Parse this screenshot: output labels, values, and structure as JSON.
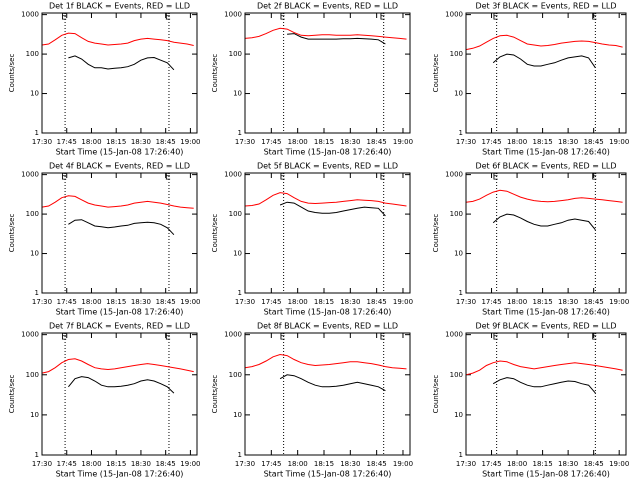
{
  "chart_data": [
    {
      "type": "line",
      "title": "Det 1f BLACK = Events, RED = LLD",
      "ylabel": "Counts/sec",
      "xlabel": "Start Time (15-Jan-08 17:26:40)",
      "log_y": true,
      "x": [
        "17:30",
        "17:34",
        "17:38",
        "17:42",
        "17:46",
        "17:50",
        "17:54",
        "17:58",
        "18:02",
        "18:06",
        "18:10",
        "18:14",
        "18:18",
        "18:22",
        "18:26",
        "18:30",
        "18:34",
        "18:38",
        "18:42",
        "18:46",
        "18:50",
        "18:54",
        "18:58",
        "19:02"
      ],
      "xlim": [
        "17:30",
        "19:04"
      ],
      "xticks": [
        "17:30",
        "17:45",
        "18:00",
        "18:15",
        "18:30",
        "18:45",
        "19:00"
      ],
      "ylim": [
        1,
        1100
      ],
      "yticks": [
        1,
        10,
        100,
        1000
      ],
      "events": [
        {
          "x": "17:44",
          "label": "E"
        },
        {
          "x": "18:47",
          "label": "E"
        }
      ],
      "series": [
        {
          "color": "#ff0000",
          "values": [
            170,
            180,
            230,
            300,
            340,
            330,
            260,
            210,
            190,
            180,
            170,
            175,
            180,
            190,
            220,
            240,
            250,
            240,
            230,
            220,
            200,
            190,
            180,
            165
          ]
        },
        {
          "color": "#000000",
          "values": [
            null,
            null,
            null,
            null,
            80,
            90,
            75,
            55,
            45,
            45,
            42,
            44,
            45,
            48,
            55,
            70,
            80,
            82,
            70,
            60,
            40,
            null,
            null,
            null
          ]
        }
      ]
    },
    {
      "type": "line",
      "title": "Det 2f BLACK = Events, RED = LLD",
      "ylabel": "Counts/sec",
      "xlabel": "Start Time (15-Jan-08 17:26:40)",
      "log_y": true,
      "x": [
        "17:30",
        "17:34",
        "17:38",
        "17:42",
        "17:46",
        "17:50",
        "17:54",
        "17:58",
        "18:02",
        "18:06",
        "18:10",
        "18:14",
        "18:18",
        "18:22",
        "18:26",
        "18:30",
        "18:34",
        "18:38",
        "18:42",
        "18:46",
        "18:50",
        "18:54",
        "18:58",
        "19:02"
      ],
      "xlim": [
        "17:30",
        "19:04"
      ],
      "xticks": [
        "17:30",
        "17:45",
        "18:00",
        "18:15",
        "18:30",
        "18:45",
        "19:00"
      ],
      "ylim": [
        1,
        1100
      ],
      "yticks": [
        1,
        10,
        100,
        1000
      ],
      "events": [
        {
          "x": "17:52",
          "label": "E"
        },
        {
          "x": "18:49",
          "label": "E"
        }
      ],
      "series": [
        {
          "color": "#ff0000",
          "values": [
            250,
            260,
            280,
            330,
            400,
            450,
            430,
            350,
            300,
            290,
            300,
            310,
            310,
            300,
            300,
            300,
            310,
            300,
            290,
            280,
            270,
            260,
            250,
            240
          ]
        },
        {
          "color": "#000000",
          "values": [
            null,
            null,
            null,
            null,
            null,
            null,
            320,
            330,
            270,
            240,
            240,
            240,
            240,
            240,
            245,
            245,
            250,
            245,
            240,
            230,
            180,
            null,
            null,
            null
          ]
        }
      ]
    },
    {
      "type": "line",
      "title": "Det 3f BLACK = Events, RED = LLD",
      "ylabel": "Counts/sec",
      "xlabel": "Start Time (15-Jan-08 17:26:40)",
      "log_y": true,
      "x": [
        "17:30",
        "17:34",
        "17:38",
        "17:42",
        "17:46",
        "17:50",
        "17:54",
        "17:58",
        "18:02",
        "18:06",
        "18:10",
        "18:14",
        "18:18",
        "18:22",
        "18:26",
        "18:30",
        "18:34",
        "18:38",
        "18:42",
        "18:46",
        "18:50",
        "18:54",
        "18:58",
        "19:02"
      ],
      "xlim": [
        "17:30",
        "19:04"
      ],
      "xticks": [
        "17:30",
        "17:45",
        "18:00",
        "18:15",
        "18:30",
        "18:45",
        "19:00"
      ],
      "ylim": [
        1,
        1100
      ],
      "yticks": [
        1,
        10,
        100,
        1000
      ],
      "events": [
        {
          "x": "17:48",
          "label": "E"
        },
        {
          "x": "18:46",
          "label": "E"
        }
      ],
      "series": [
        {
          "color": "#ff0000",
          "values": [
            130,
            140,
            160,
            200,
            250,
            290,
            300,
            270,
            220,
            180,
            170,
            160,
            165,
            175,
            190,
            200,
            210,
            215,
            210,
            195,
            180,
            170,
            165,
            150
          ]
        },
        {
          "color": "#000000",
          "values": [
            null,
            null,
            null,
            null,
            60,
            85,
            100,
            95,
            75,
            55,
            50,
            50,
            55,
            60,
            70,
            80,
            85,
            90,
            80,
            45,
            null,
            null,
            null,
            null
          ]
        }
      ]
    },
    {
      "type": "line",
      "title": "Det 4f BLACK = Events, RED = LLD",
      "ylabel": "Counts/sec",
      "xlabel": "Start Time (15-Jan-08 17:26:40)",
      "log_y": true,
      "x": [
        "17:30",
        "17:34",
        "17:38",
        "17:42",
        "17:46",
        "17:50",
        "17:54",
        "17:58",
        "18:02",
        "18:06",
        "18:10",
        "18:14",
        "18:18",
        "18:22",
        "18:26",
        "18:30",
        "18:34",
        "18:38",
        "18:42",
        "18:46",
        "18:50",
        "18:54",
        "18:58",
        "19:02"
      ],
      "xlim": [
        "17:30",
        "19:04"
      ],
      "xticks": [
        "17:30",
        "17:45",
        "18:00",
        "18:15",
        "18:30",
        "18:45",
        "19:00"
      ],
      "ylim": [
        1,
        1100
      ],
      "yticks": [
        1,
        10,
        100,
        1000
      ],
      "events": [
        {
          "x": "17:44",
          "label": "E"
        },
        {
          "x": "18:47",
          "label": "E"
        }
      ],
      "series": [
        {
          "color": "#ff0000",
          "values": [
            150,
            160,
            200,
            260,
            290,
            280,
            230,
            190,
            170,
            160,
            150,
            155,
            160,
            170,
            190,
            200,
            210,
            200,
            190,
            175,
            160,
            150,
            145,
            140
          ]
        },
        {
          "color": "#000000",
          "values": [
            null,
            null,
            null,
            null,
            55,
            70,
            72,
            60,
            50,
            48,
            45,
            47,
            50,
            52,
            58,
            60,
            62,
            60,
            55,
            45,
            30,
            null,
            null,
            null
          ]
        }
      ]
    },
    {
      "type": "line",
      "title": "Det 5f BLACK = Events, RED = LLD",
      "ylabel": "Counts/sec",
      "xlabel": "Start Time (15-Jan-08 17:26:40)",
      "log_y": true,
      "x": [
        "17:30",
        "17:34",
        "17:38",
        "17:42",
        "17:46",
        "17:50",
        "17:54",
        "17:58",
        "18:02",
        "18:06",
        "18:10",
        "18:14",
        "18:18",
        "18:22",
        "18:26",
        "18:30",
        "18:34",
        "18:38",
        "18:42",
        "18:46",
        "18:50",
        "18:54",
        "18:58",
        "19:02"
      ],
      "xlim": [
        "17:30",
        "19:04"
      ],
      "xticks": [
        "17:30",
        "17:45",
        "18:00",
        "18:15",
        "18:30",
        "18:45",
        "19:00"
      ],
      "ylim": [
        1,
        1100
      ],
      "yticks": [
        1,
        10,
        100,
        1000
      ],
      "events": [
        {
          "x": "17:52",
          "label": "E"
        },
        {
          "x": "18:49",
          "label": "E"
        }
      ],
      "series": [
        {
          "color": "#ff0000",
          "values": [
            160,
            165,
            180,
            230,
            300,
            350,
            330,
            260,
            210,
            190,
            185,
            190,
            195,
            200,
            210,
            220,
            230,
            225,
            220,
            210,
            190,
            180,
            170,
            160
          ]
        },
        {
          "color": "#000000",
          "values": [
            null,
            null,
            null,
            null,
            null,
            170,
            200,
            190,
            150,
            120,
            110,
            105,
            105,
            110,
            120,
            130,
            140,
            150,
            145,
            140,
            90,
            null,
            null,
            null
          ]
        }
      ]
    },
    {
      "type": "line",
      "title": "Det 6f BLACK = Events, RED = LLD",
      "ylabel": "Counts/sec",
      "xlabel": "Start Time (15-Jan-08 17:26:40)",
      "log_y": true,
      "x": [
        "17:30",
        "17:34",
        "17:38",
        "17:42",
        "17:46",
        "17:50",
        "17:54",
        "17:58",
        "18:02",
        "18:06",
        "18:10",
        "18:14",
        "18:18",
        "18:22",
        "18:26",
        "18:30",
        "18:34",
        "18:38",
        "18:42",
        "18:46",
        "18:50",
        "18:54",
        "18:58",
        "19:02"
      ],
      "xlim": [
        "17:30",
        "19:04"
      ],
      "xticks": [
        "17:30",
        "17:45",
        "18:00",
        "18:15",
        "18:30",
        "18:45",
        "19:00"
      ],
      "ylim": [
        1,
        1100
      ],
      "yticks": [
        1,
        10,
        100,
        1000
      ],
      "events": [
        {
          "x": "17:48",
          "label": "E"
        },
        {
          "x": "18:46",
          "label": "E"
        }
      ],
      "series": [
        {
          "color": "#ff0000",
          "values": [
            200,
            210,
            240,
            300,
            360,
            400,
            380,
            320,
            270,
            240,
            220,
            210,
            205,
            210,
            220,
            230,
            250,
            260,
            250,
            240,
            230,
            220,
            210,
            200
          ]
        },
        {
          "color": "#000000",
          "values": [
            null,
            null,
            null,
            null,
            60,
            85,
            100,
            95,
            80,
            65,
            55,
            50,
            50,
            55,
            60,
            70,
            75,
            70,
            65,
            40,
            null,
            null,
            null,
            null
          ]
        }
      ]
    },
    {
      "type": "line",
      "title": "Det 7f BLACK = Events, RED = LLD",
      "ylabel": "Counts/sec",
      "xlabel": "Start Time (15-Jan-08 17:26:40)",
      "log_y": true,
      "x": [
        "17:30",
        "17:34",
        "17:38",
        "17:42",
        "17:46",
        "17:50",
        "17:54",
        "17:58",
        "18:02",
        "18:06",
        "18:10",
        "18:14",
        "18:18",
        "18:22",
        "18:26",
        "18:30",
        "18:34",
        "18:38",
        "18:42",
        "18:46",
        "18:50",
        "18:54",
        "18:58",
        "19:02"
      ],
      "xlim": [
        "17:30",
        "19:04"
      ],
      "xticks": [
        "17:30",
        "17:45",
        "18:00",
        "18:15",
        "18:30",
        "18:45",
        "19:00"
      ],
      "ylim": [
        1,
        1100
      ],
      "yticks": [
        1,
        10,
        100,
        1000
      ],
      "events": [
        {
          "x": "17:44",
          "label": "E"
        },
        {
          "x": "18:47",
          "label": "E"
        }
      ],
      "series": [
        {
          "color": "#ff0000",
          "values": [
            110,
            120,
            150,
            200,
            240,
            250,
            220,
            180,
            150,
            140,
            135,
            140,
            150,
            160,
            170,
            180,
            190,
            180,
            170,
            160,
            150,
            140,
            130,
            120
          ]
        },
        {
          "color": "#000000",
          "values": [
            null,
            null,
            null,
            null,
            50,
            80,
            90,
            85,
            70,
            55,
            50,
            50,
            52,
            55,
            60,
            70,
            75,
            70,
            60,
            50,
            35,
            null,
            null,
            null
          ]
        }
      ]
    },
    {
      "type": "line",
      "title": "Det 8f BLACK = Events, RED = LLD",
      "ylabel": "Counts/sec",
      "xlabel": "Start Time (15-Jan-08 17:26:40)",
      "log_y": true,
      "x": [
        "17:30",
        "17:34",
        "17:38",
        "17:42",
        "17:46",
        "17:50",
        "17:54",
        "17:58",
        "18:02",
        "18:06",
        "18:10",
        "18:14",
        "18:18",
        "18:22",
        "18:26",
        "18:30",
        "18:34",
        "18:38",
        "18:42",
        "18:46",
        "18:50",
        "18:54",
        "18:58",
        "19:02"
      ],
      "xlim": [
        "17:30",
        "19:04"
      ],
      "xticks": [
        "17:30",
        "17:45",
        "18:00",
        "18:15",
        "18:30",
        "18:45",
        "19:00"
      ],
      "ylim": [
        1,
        1100
      ],
      "yticks": [
        1,
        10,
        100,
        1000
      ],
      "events": [
        {
          "x": "17:52",
          "label": "E"
        },
        {
          "x": "18:49",
          "label": "E"
        }
      ],
      "series": [
        {
          "color": "#ff0000",
          "values": [
            150,
            160,
            180,
            220,
            280,
            320,
            300,
            240,
            200,
            180,
            170,
            175,
            180,
            190,
            200,
            210,
            210,
            200,
            190,
            175,
            160,
            150,
            145,
            140
          ]
        },
        {
          "color": "#000000",
          "values": [
            null,
            null,
            null,
            null,
            null,
            80,
            100,
            95,
            80,
            65,
            55,
            50,
            50,
            52,
            55,
            60,
            65,
            60,
            55,
            50,
            40,
            null,
            null,
            null
          ]
        }
      ]
    },
    {
      "type": "line",
      "title": "Det 9f BLACK = Events, RED = LLD",
      "ylabel": "Counts/sec",
      "xlabel": "Start Time (15-Jan-08 17:26:40)",
      "log_y": true,
      "x": [
        "17:30",
        "17:34",
        "17:38",
        "17:42",
        "17:46",
        "17:50",
        "17:54",
        "17:58",
        "18:02",
        "18:06",
        "18:10",
        "18:14",
        "18:18",
        "18:22",
        "18:26",
        "18:30",
        "18:34",
        "18:38",
        "18:42",
        "18:46",
        "18:50",
        "18:54",
        "18:58",
        "19:02"
      ],
      "xlim": [
        "17:30",
        "19:04"
      ],
      "xticks": [
        "17:30",
        "17:45",
        "18:00",
        "18:15",
        "18:30",
        "18:45",
        "19:00"
      ],
      "ylim": [
        1,
        1100
      ],
      "yticks": [
        1,
        10,
        100,
        1000
      ],
      "events": [
        {
          "x": "17:48",
          "label": "E"
        },
        {
          "x": "18:46",
          "label": "E"
        }
      ],
      "series": [
        {
          "color": "#ff0000",
          "values": [
            100,
            110,
            130,
            170,
            200,
            220,
            210,
            180,
            160,
            150,
            140,
            150,
            160,
            170,
            180,
            190,
            200,
            190,
            180,
            170,
            160,
            150,
            140,
            130
          ]
        },
        {
          "color": "#000000",
          "values": [
            null,
            null,
            null,
            null,
            60,
            75,
            85,
            80,
            65,
            55,
            50,
            50,
            55,
            60,
            65,
            70,
            68,
            60,
            55,
            35,
            null,
            null,
            null,
            null
          ]
        }
      ]
    }
  ]
}
